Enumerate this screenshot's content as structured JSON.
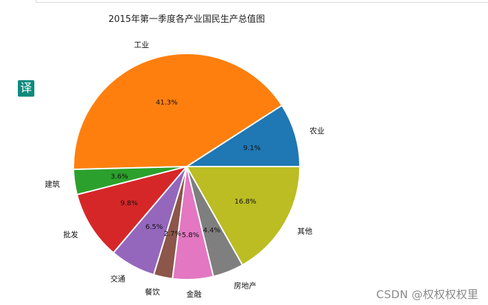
{
  "translate_label": "译",
  "watermark": "CSDN @权权权权里",
  "chart_data": {
    "type": "pie",
    "title": "2015年第一季度各产业国民生产总值图",
    "start_angle_deg": 0,
    "direction": "counterclockwise",
    "categories": [
      "农业",
      "工业",
      "建筑",
      "批发",
      "交通",
      "餐饮",
      "金融",
      "房地产",
      "其他"
    ],
    "values": [
      9.1,
      41.3,
      3.6,
      9.8,
      6.5,
      2.7,
      5.8,
      4.4,
      16.8
    ],
    "percent_labels": [
      "9.1%",
      "41.3%",
      "3.6%",
      "9.8%",
      "6.5%",
      "2.7%",
      "5.8%",
      "4.4%",
      "16.8%"
    ],
    "colors": [
      "#1f77b4",
      "#ff7f0e",
      "#2ca02c",
      "#d62728",
      "#9467bd",
      "#8c564b",
      "#e377c2",
      "#7f7f7f",
      "#bcbd22"
    ]
  }
}
